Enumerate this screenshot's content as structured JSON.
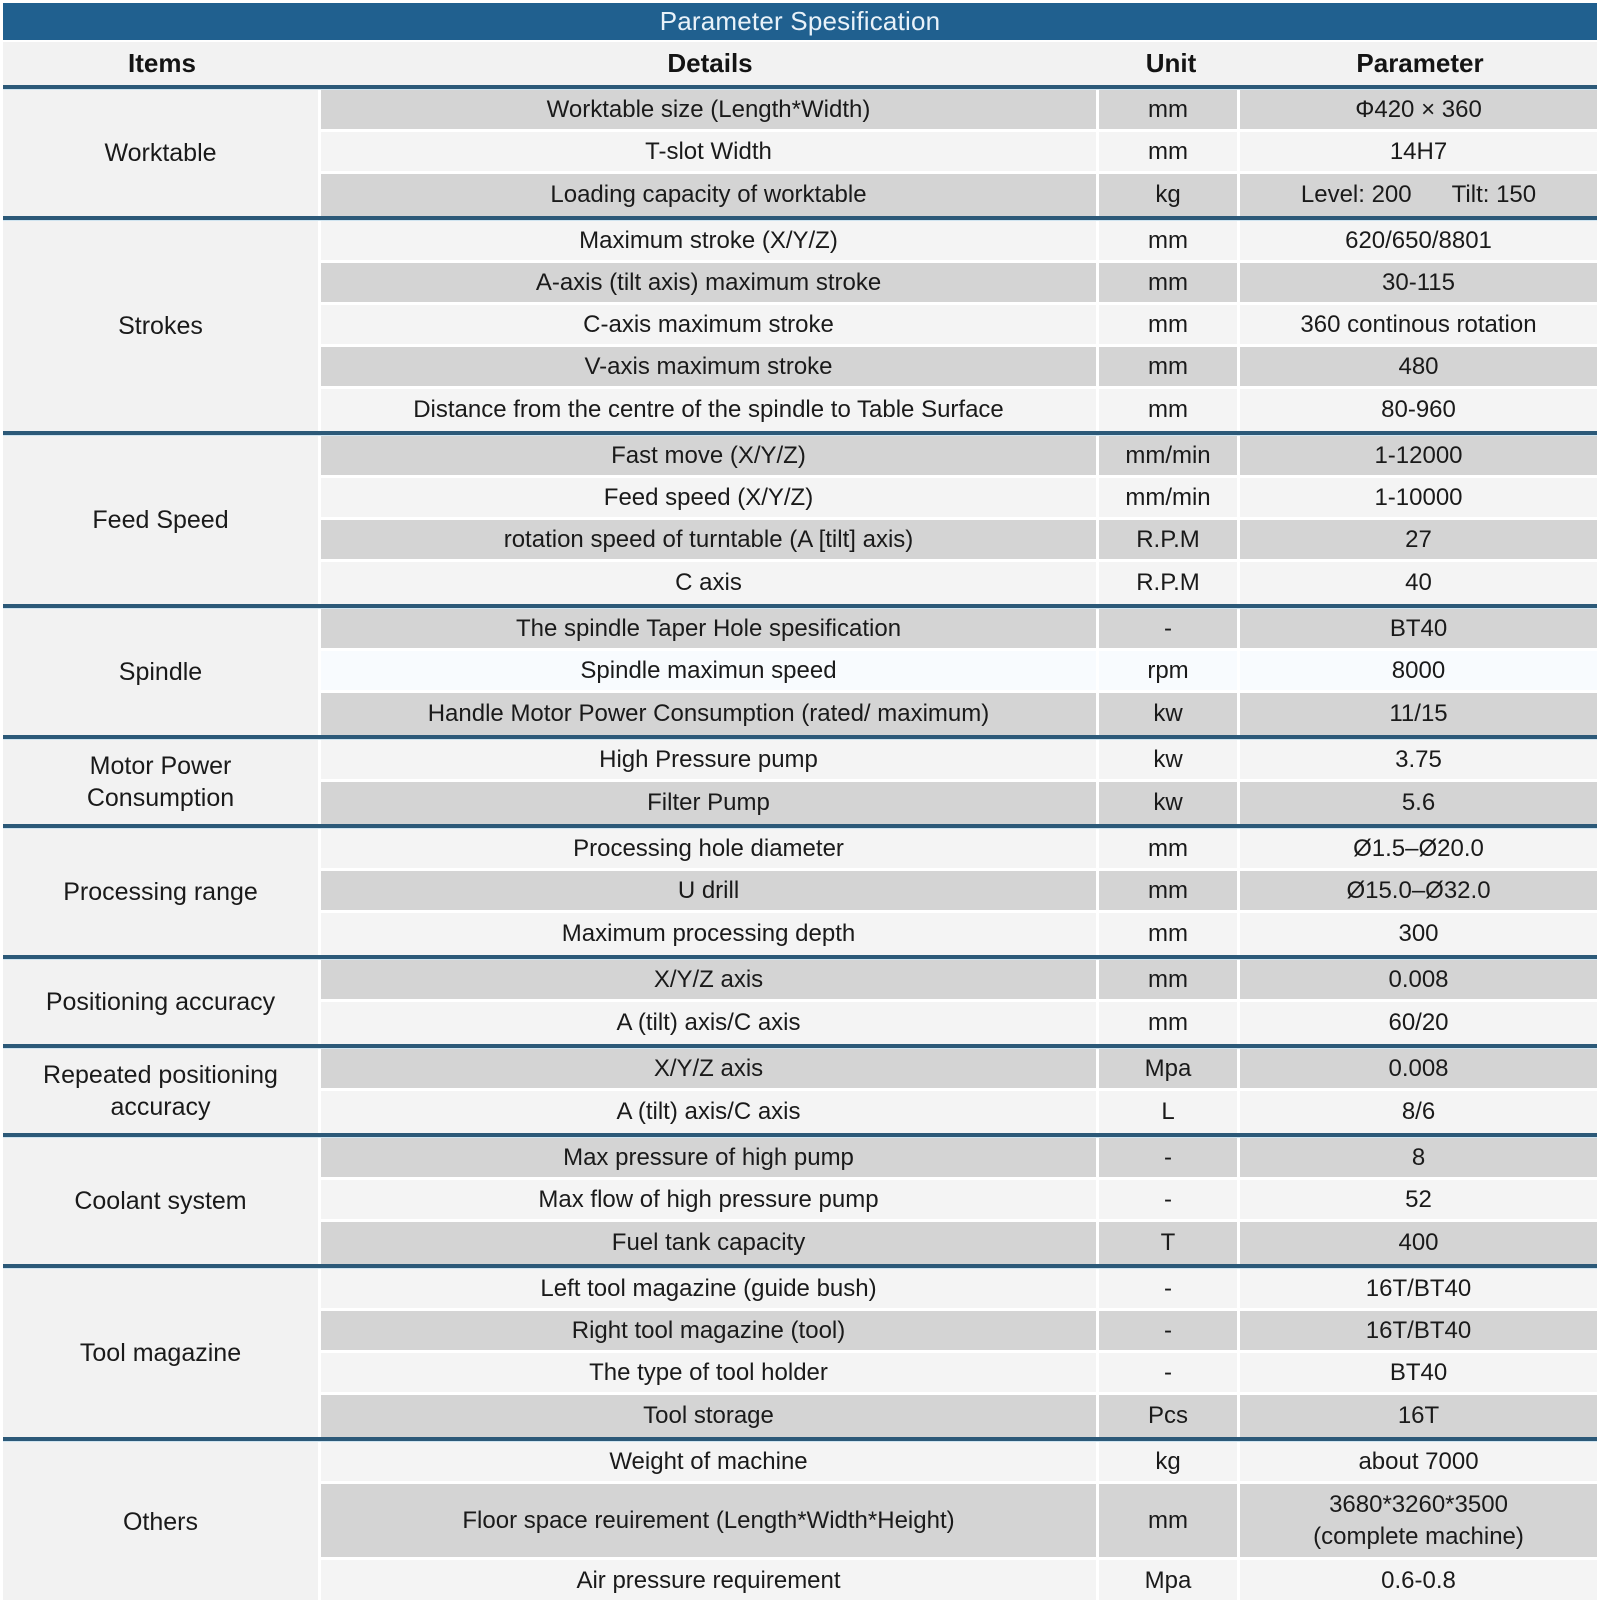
{
  "title": "Parameter Spesification",
  "columns": {
    "items": "Items",
    "details": "Details",
    "unit": "Unit",
    "parameter": "Parameter"
  },
  "colors": {
    "title_bar": "#20608f",
    "title_text": "#e9f2f9",
    "separator_navy": "#2c5978",
    "separator_light": "#cfe4f0",
    "row_gray": "#d4d4d4",
    "row_light": "#f4f4f4",
    "row_highlight": "#f8fbfe",
    "items_column": "#f2f2f2",
    "text": "#1a1a1a"
  },
  "groups": [
    {
      "item": "Worktable",
      "rows": [
        {
          "details": "Worktable size (Length*Width)",
          "unit": "mm",
          "parameter": "Φ420 × 360"
        },
        {
          "details": "T-slot Width",
          "unit": "mm",
          "parameter": "14H7"
        },
        {
          "details": "Loading capacity of worktable",
          "unit": "kg",
          "parameter": "Level: 200      Tilt: 150"
        }
      ]
    },
    {
      "item": "Strokes",
      "rows": [
        {
          "details": "Maximum stroke (X/Y/Z)",
          "unit": "mm",
          "parameter": "620/650/8801"
        },
        {
          "details": "A-axis (tilt axis) maximum stroke",
          "unit": "mm",
          "parameter": "30-115"
        },
        {
          "details": "C-axis maximum stroke",
          "unit": "mm",
          "parameter": "360 continous rotation"
        },
        {
          "details": "V-axis maximum stroke",
          "unit": "mm",
          "parameter": "480"
        },
        {
          "details": "Distance from the centre of the spindle to Table Surface",
          "unit": "mm",
          "parameter": "80-960"
        }
      ]
    },
    {
      "item": "Feed Speed",
      "rows": [
        {
          "details": "Fast move (X/Y/Z)",
          "unit": "mm/min",
          "parameter": "1-12000"
        },
        {
          "details": "Feed speed (X/Y/Z)",
          "unit": "mm/min",
          "parameter": "1-10000"
        },
        {
          "details": "rotation speed of turntable (A [tilt] axis)",
          "unit": "R.P.M",
          "parameter": "27"
        },
        {
          "details": "C axis",
          "unit": "R.P.M",
          "parameter": "40"
        }
      ]
    },
    {
      "item": "Spindle",
      "rows": [
        {
          "details": "The spindle Taper Hole spesification",
          "unit": "-",
          "parameter": "BT40"
        },
        {
          "details": "Spindle maximun speed",
          "unit": "rpm",
          "parameter": "8000",
          "highlight": true
        },
        {
          "details": "Handle Motor Power Consumption (rated/ maximum)",
          "unit": "kw",
          "parameter": "11/15"
        }
      ]
    },
    {
      "item": "Motor Power Consumption",
      "rows": [
        {
          "details": "High Pressure pump",
          "unit": "kw",
          "parameter": "3.75"
        },
        {
          "details": "Filter Pump",
          "unit": "kw",
          "parameter": "5.6"
        }
      ]
    },
    {
      "item": "Processing range",
      "rows": [
        {
          "details": "Processing hole diameter",
          "unit": "mm",
          "parameter": "Ø1.5–Ø20.0"
        },
        {
          "details": "U drill",
          "unit": "mm",
          "parameter": "Ø15.0–Ø32.0"
        },
        {
          "details": "Maximum processing depth",
          "unit": "mm",
          "parameter": "300"
        }
      ]
    },
    {
      "item": "Positioning accuracy",
      "rows": [
        {
          "details": "X/Y/Z axis",
          "unit": "mm",
          "parameter": "0.008"
        },
        {
          "details": "A (tilt) axis/C axis",
          "unit": "mm",
          "parameter": "60/20"
        }
      ]
    },
    {
      "item": "Repeated positioning accuracy",
      "rows": [
        {
          "details": "X/Y/Z axis",
          "unit": "Mpa",
          "parameter": "0.008"
        },
        {
          "details": "A (tilt) axis/C axis",
          "unit": "L",
          "parameter": "8/6"
        }
      ]
    },
    {
      "item": "Coolant system",
      "rows": [
        {
          "details": "Max pressure of high pump",
          "unit": "-",
          "parameter": "8"
        },
        {
          "details": "Max flow of high pressure pump",
          "unit": "-",
          "parameter": "52"
        },
        {
          "details": "Fuel tank capacity",
          "unit": "T",
          "parameter": "400"
        }
      ]
    },
    {
      "item": "Tool magazine",
      "rows": [
        {
          "details": "Left tool magazine (guide bush)",
          "unit": "-",
          "parameter": "16T/BT40"
        },
        {
          "details": "Right tool magazine (tool)",
          "unit": "-",
          "parameter": "16T/BT40"
        },
        {
          "details": "The type of tool holder",
          "unit": "-",
          "parameter": "BT40"
        },
        {
          "details": "Tool storage",
          "unit": "Pcs",
          "parameter": "16T"
        }
      ]
    },
    {
      "item": "Others",
      "rows": [
        {
          "details": "Weight of machine",
          "unit": "kg",
          "parameter": "about 7000"
        },
        {
          "details": "Floor space reuirement (Length*Width*Height)",
          "unit": "mm",
          "parameter": "3680*3260*3500\n(complete machine)",
          "tall": true
        },
        {
          "details": "Air pressure requirement",
          "unit": "Mpa",
          "parameter": "0.6-0.8"
        }
      ]
    }
  ]
}
